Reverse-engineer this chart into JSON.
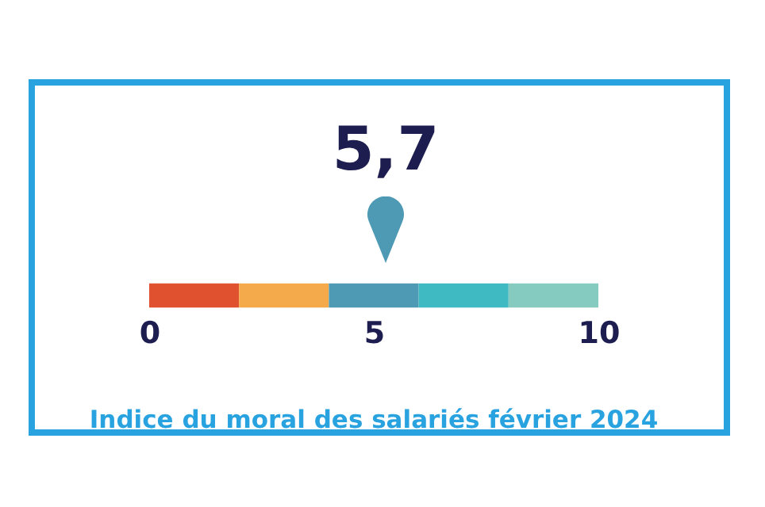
{
  "chart_data": {
    "type": "bar",
    "orientation": "horizontal",
    "stacked": true,
    "title": "Indice du moral des salariés février 2024",
    "categories": [
      null
    ],
    "series": [
      {
        "color": "#e0522f",
        "values": [
          2
        ]
      },
      {
        "color": "#f4a94a",
        "values": [
          2
        ]
      },
      {
        "color": "#4e9ab5",
        "values": [
          2
        ]
      },
      {
        "color": "#3fb9c2",
        "values": [
          2
        ]
      },
      {
        "color": "#86cbc0",
        "values": [
          2
        ]
      }
    ],
    "xlim": [
      0,
      10
    ],
    "xticks": [
      0,
      5,
      10
    ],
    "tick_labels": "x",
    "annotations": [
      "5,7"
    ]
  }
}
